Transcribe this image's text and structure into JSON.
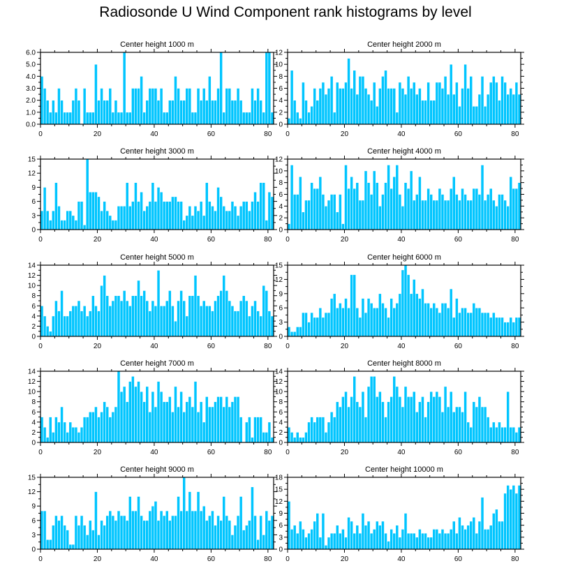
{
  "title": "Radiosonde U Wind Component rank histograms by level",
  "colors": {
    "bar_fill": "#00c5ff",
    "bar_edge": "#ffffff",
    "axis": "#000000",
    "background": "#ffffff"
  },
  "chart_data": [
    {
      "type": "bar",
      "title": "Center height 1000 m",
      "xlim": [
        0,
        82
      ],
      "xticks": [
        0,
        20,
        40,
        60,
        80
      ],
      "ylim": [
        0,
        6
      ],
      "yticks": [
        0,
        1,
        2,
        3,
        4,
        5,
        6
      ],
      "ytick_labels": [
        "0.0",
        "1.0",
        "2.0",
        "3.0",
        "4.0",
        "5.0",
        "6.0"
      ],
      "x_start": 0,
      "values": [
        4,
        3,
        2,
        1,
        2,
        1,
        3,
        2,
        1,
        1,
        1,
        2,
        3,
        2,
        0,
        3,
        1,
        1,
        1,
        5,
        2,
        3,
        2,
        2,
        3,
        1,
        2,
        1,
        1,
        6,
        1,
        1,
        3,
        3,
        3,
        4,
        1,
        2,
        3,
        3,
        3,
        2,
        3,
        1,
        1,
        2,
        2,
        4,
        3,
        2,
        2,
        3,
        3,
        1,
        1,
        3,
        2,
        3,
        2,
        4,
        2,
        2,
        3,
        6,
        1,
        3,
        3,
        2,
        2,
        3,
        2,
        1,
        1,
        1,
        3,
        2,
        3,
        2,
        1,
        6,
        6,
        1
      ]
    },
    {
      "type": "bar",
      "title": "Center height 2000 m",
      "xlim": [
        0,
        82
      ],
      "xticks": [
        0,
        20,
        40,
        60,
        80
      ],
      "ylim": [
        0,
        12
      ],
      "yticks": [
        0,
        2,
        4,
        6,
        8,
        10,
        12
      ],
      "ytick_labels": [
        "0",
        "2",
        "4",
        "6",
        "8",
        "10",
        "12"
      ],
      "x_start": 0,
      "values": [
        1,
        9,
        4,
        2,
        1,
        7,
        4,
        2,
        3,
        6,
        4,
        6,
        7,
        5,
        6,
        8,
        2,
        7,
        6,
        6,
        7,
        11,
        6,
        9,
        5,
        8,
        8,
        6,
        5,
        4,
        7,
        3,
        6,
        8,
        9,
        6,
        6,
        6,
        2,
        7,
        6,
        5,
        8,
        6,
        7,
        5,
        6,
        4,
        4,
        7,
        4,
        4,
        7,
        7,
        6,
        8,
        5,
        10,
        5,
        7,
        3,
        6,
        10,
        6,
        8,
        3,
        3,
        5,
        8,
        3,
        5,
        7,
        8,
        7,
        4,
        8,
        7,
        5,
        6,
        5,
        7,
        5
      ]
    },
    {
      "type": "bar",
      "title": "Center height 3000 m",
      "xlim": [
        0,
        82
      ],
      "xticks": [
        0,
        20,
        40,
        60,
        80
      ],
      "ylim": [
        0,
        15
      ],
      "yticks": [
        0,
        3,
        6,
        9,
        12,
        15
      ],
      "ytick_labels": [
        "0",
        "3",
        "6",
        "9",
        "12",
        "15"
      ],
      "x_start": 0,
      "values": [
        4,
        9,
        4,
        2,
        4,
        10,
        5,
        2,
        2,
        4,
        4,
        3,
        2,
        6,
        6,
        1,
        15,
        8,
        8,
        8,
        7,
        4,
        6,
        4,
        3,
        2,
        2,
        5,
        5,
        5,
        10,
        5,
        6,
        10,
        6,
        8,
        4,
        5,
        6,
        10,
        6,
        9,
        8,
        6,
        6,
        6,
        7,
        7,
        6,
        6,
        2,
        3,
        5,
        3,
        5,
        4,
        6,
        3,
        10,
        6,
        5,
        4,
        9,
        7,
        5,
        4,
        4,
        6,
        5,
        3,
        5,
        6,
        6,
        4,
        6,
        8,
        6,
        10,
        10,
        2,
        8,
        7
      ]
    },
    {
      "type": "bar",
      "title": "Center height 4000 m",
      "xlim": [
        0,
        82
      ],
      "xticks": [
        0,
        20,
        40,
        60,
        80
      ],
      "ylim": [
        0,
        12
      ],
      "yticks": [
        0,
        2,
        4,
        6,
        8,
        10,
        12
      ],
      "ytick_labels": [
        "0",
        "2",
        "4",
        "6",
        "8",
        "10",
        "12"
      ],
      "x_start": 0,
      "values": [
        1,
        11,
        6,
        6,
        9,
        3,
        5,
        5,
        8,
        7,
        7,
        9,
        6,
        4,
        5,
        6,
        6,
        3,
        6,
        1,
        11,
        7,
        9,
        7,
        8,
        5,
        5,
        10,
        8,
        6,
        10,
        8,
        4,
        6,
        8,
        11,
        7,
        9,
        11,
        6,
        4,
        8,
        7,
        10,
        5,
        6,
        9,
        5,
        5,
        7,
        6,
        5,
        5,
        7,
        6,
        5,
        5,
        7,
        9,
        6,
        5,
        7,
        6,
        5,
        5,
        7,
        7,
        6,
        11,
        5,
        6,
        7,
        5,
        4,
        6,
        6,
        5,
        4,
        9,
        7,
        7,
        8
      ]
    },
    {
      "type": "bar",
      "title": "Center height 5000 m",
      "xlim": [
        0,
        82
      ],
      "xticks": [
        0,
        20,
        40,
        60,
        80
      ],
      "ylim": [
        0,
        14
      ],
      "yticks": [
        0,
        2,
        4,
        6,
        8,
        10,
        12,
        14
      ],
      "ytick_labels": [
        "0",
        "2",
        "4",
        "6",
        "8",
        "10",
        "12",
        "14"
      ],
      "x_start": 0,
      "values": [
        6,
        4,
        2,
        1,
        4,
        7,
        5,
        9,
        4,
        4,
        5,
        6,
        6,
        7,
        5,
        6,
        4,
        5,
        8,
        6,
        5,
        10,
        12,
        8,
        6,
        7,
        8,
        8,
        7,
        9,
        7,
        6,
        8,
        8,
        11,
        8,
        9,
        7,
        5,
        7,
        6,
        13,
        6,
        6,
        7,
        9,
        6,
        3,
        7,
        9,
        7,
        4,
        8,
        8,
        12,
        8,
        6,
        7,
        6,
        6,
        5,
        7,
        8,
        9,
        12,
        9,
        7,
        6,
        5,
        5,
        7,
        8,
        7,
        4,
        6,
        7,
        5,
        4,
        10,
        9,
        5,
        4
      ]
    },
    {
      "type": "bar",
      "title": "Center height 6000 m",
      "xlim": [
        0,
        82
      ],
      "xticks": [
        0,
        20,
        40,
        60,
        80
      ],
      "ylim": [
        0,
        15
      ],
      "yticks": [
        0,
        3,
        6,
        9,
        12,
        15
      ],
      "ytick_labels": [
        "0",
        "3",
        "6",
        "9",
        "12",
        "15"
      ],
      "x_start": 0,
      "values": [
        2,
        1,
        1,
        2,
        2,
        5,
        5,
        3,
        5,
        4,
        4,
        6,
        4,
        5,
        5,
        8,
        9,
        6,
        7,
        6,
        8,
        6,
        13,
        13,
        6,
        4,
        8,
        5,
        8,
        7,
        6,
        6,
        9,
        7,
        6,
        4,
        8,
        6,
        7,
        9,
        14,
        15,
        13,
        9,
        12,
        9,
        8,
        10,
        7,
        7,
        6,
        7,
        6,
        5,
        7,
        7,
        6,
        10,
        4,
        8,
        5,
        6,
        6,
        5,
        5,
        7,
        6,
        6,
        5,
        5,
        5,
        4,
        5,
        4,
        4,
        4,
        3,
        3,
        4,
        3,
        4,
        4
      ]
    },
    {
      "type": "bar",
      "title": "Center height 7000 m",
      "xlim": [
        0,
        82
      ],
      "xticks": [
        0,
        20,
        40,
        60,
        80
      ],
      "ylim": [
        0,
        14
      ],
      "yticks": [
        0,
        2,
        4,
        6,
        8,
        10,
        12,
        14
      ],
      "ytick_labels": [
        "0",
        "2",
        "4",
        "6",
        "8",
        "10",
        "12",
        "14"
      ],
      "x_start": 0,
      "values": [
        5,
        3,
        1,
        5,
        2,
        5,
        4,
        7,
        4,
        2,
        4,
        3,
        3,
        2,
        3,
        5,
        5,
        6,
        6,
        7,
        5,
        6,
        8,
        7,
        5,
        6,
        7,
        14,
        10,
        11,
        8,
        12,
        13,
        11,
        12,
        10,
        8,
        11,
        6,
        10,
        7,
        12,
        10,
        8,
        8,
        9,
        6,
        11,
        7,
        10,
        6,
        8,
        9,
        7,
        12,
        6,
        8,
        4,
        9,
        7,
        7,
        8,
        9,
        9,
        7,
        9,
        7,
        8,
        9,
        9,
        5,
        0,
        4,
        5,
        1,
        5,
        5,
        5,
        2,
        2,
        4,
        1
      ]
    },
    {
      "type": "bar",
      "title": "Center height 8000 m",
      "xlim": [
        0,
        82
      ],
      "xticks": [
        0,
        20,
        40,
        60,
        80
      ],
      "ylim": [
        0,
        14
      ],
      "yticks": [
        0,
        2,
        4,
        6,
        8,
        10,
        12,
        14
      ],
      "ytick_labels": [
        "0",
        "2",
        "4",
        "6",
        "8",
        "10",
        "12",
        "14"
      ],
      "x_start": 0,
      "values": [
        3,
        2,
        1,
        2,
        1,
        1,
        2,
        4,
        5,
        4,
        5,
        5,
        5,
        2,
        4,
        6,
        5,
        8,
        7,
        9,
        10,
        7,
        9,
        13,
        8,
        7,
        10,
        5,
        11,
        13,
        13,
        9,
        10,
        8,
        5,
        8,
        9,
        13,
        11,
        9,
        7,
        11,
        9,
        9,
        10,
        6,
        8,
        9,
        5,
        8,
        10,
        9,
        10,
        9,
        6,
        11,
        7,
        10,
        6,
        7,
        7,
        6,
        10,
        4,
        3,
        8,
        7,
        9,
        7,
        7,
        5,
        3,
        4,
        3,
        4,
        3,
        3,
        10,
        3,
        3,
        2,
        3
      ]
    },
    {
      "type": "bar",
      "title": "Center height 9000 m",
      "xlim": [
        0,
        82
      ],
      "xticks": [
        0,
        20,
        40,
        60,
        80
      ],
      "ylim": [
        0,
        15
      ],
      "yticks": [
        0,
        3,
        6,
        9,
        12,
        15
      ],
      "ytick_labels": [
        "0",
        "3",
        "6",
        "9",
        "12",
        "15"
      ],
      "x_start": 0,
      "values": [
        8,
        8,
        2,
        2,
        5,
        7,
        6,
        7,
        5,
        4,
        1,
        1,
        7,
        5,
        7,
        5,
        3,
        6,
        4,
        12,
        3,
        6,
        5,
        7,
        8,
        7,
        6,
        8,
        7,
        7,
        6,
        11,
        8,
        8,
        11,
        7,
        6,
        6,
        8,
        9,
        10,
        6,
        8,
        7,
        8,
        6,
        7,
        7,
        11,
        8,
        15,
        8,
        12,
        8,
        8,
        12,
        8,
        9,
        6,
        7,
        8,
        5,
        7,
        6,
        11,
        7,
        6,
        3,
        5,
        7,
        11,
        4,
        5,
        6,
        13,
        7,
        2,
        7,
        3,
        8,
        6,
        7
      ]
    },
    {
      "type": "bar",
      "title": "Center height 10000 m",
      "xlim": [
        0,
        82
      ],
      "xticks": [
        0,
        20,
        40,
        60,
        80
      ],
      "ylim": [
        0,
        18
      ],
      "yticks": [
        0,
        3,
        6,
        9,
        12,
        15,
        18
      ],
      "ytick_labels": [
        "0",
        "3",
        "6",
        "9",
        "12",
        "15",
        "18"
      ],
      "x_start": 0,
      "values": [
        12,
        5,
        6,
        4,
        7,
        5,
        3,
        4,
        5,
        7,
        9,
        3,
        9,
        1,
        3,
        4,
        4,
        6,
        4,
        5,
        3,
        8,
        7,
        4,
        6,
        4,
        9,
        6,
        7,
        4,
        5,
        7,
        6,
        7,
        4,
        2,
        5,
        4,
        6,
        3,
        5,
        9,
        4,
        4,
        4,
        3,
        5,
        4,
        4,
        3,
        3,
        5,
        5,
        4,
        5,
        4,
        4,
        5,
        7,
        4,
        8,
        6,
        5,
        6,
        7,
        8,
        4,
        7,
        13,
        5,
        5,
        6,
        9,
        10,
        7,
        7,
        14,
        16,
        15,
        16,
        14,
        16
      ]
    }
  ]
}
